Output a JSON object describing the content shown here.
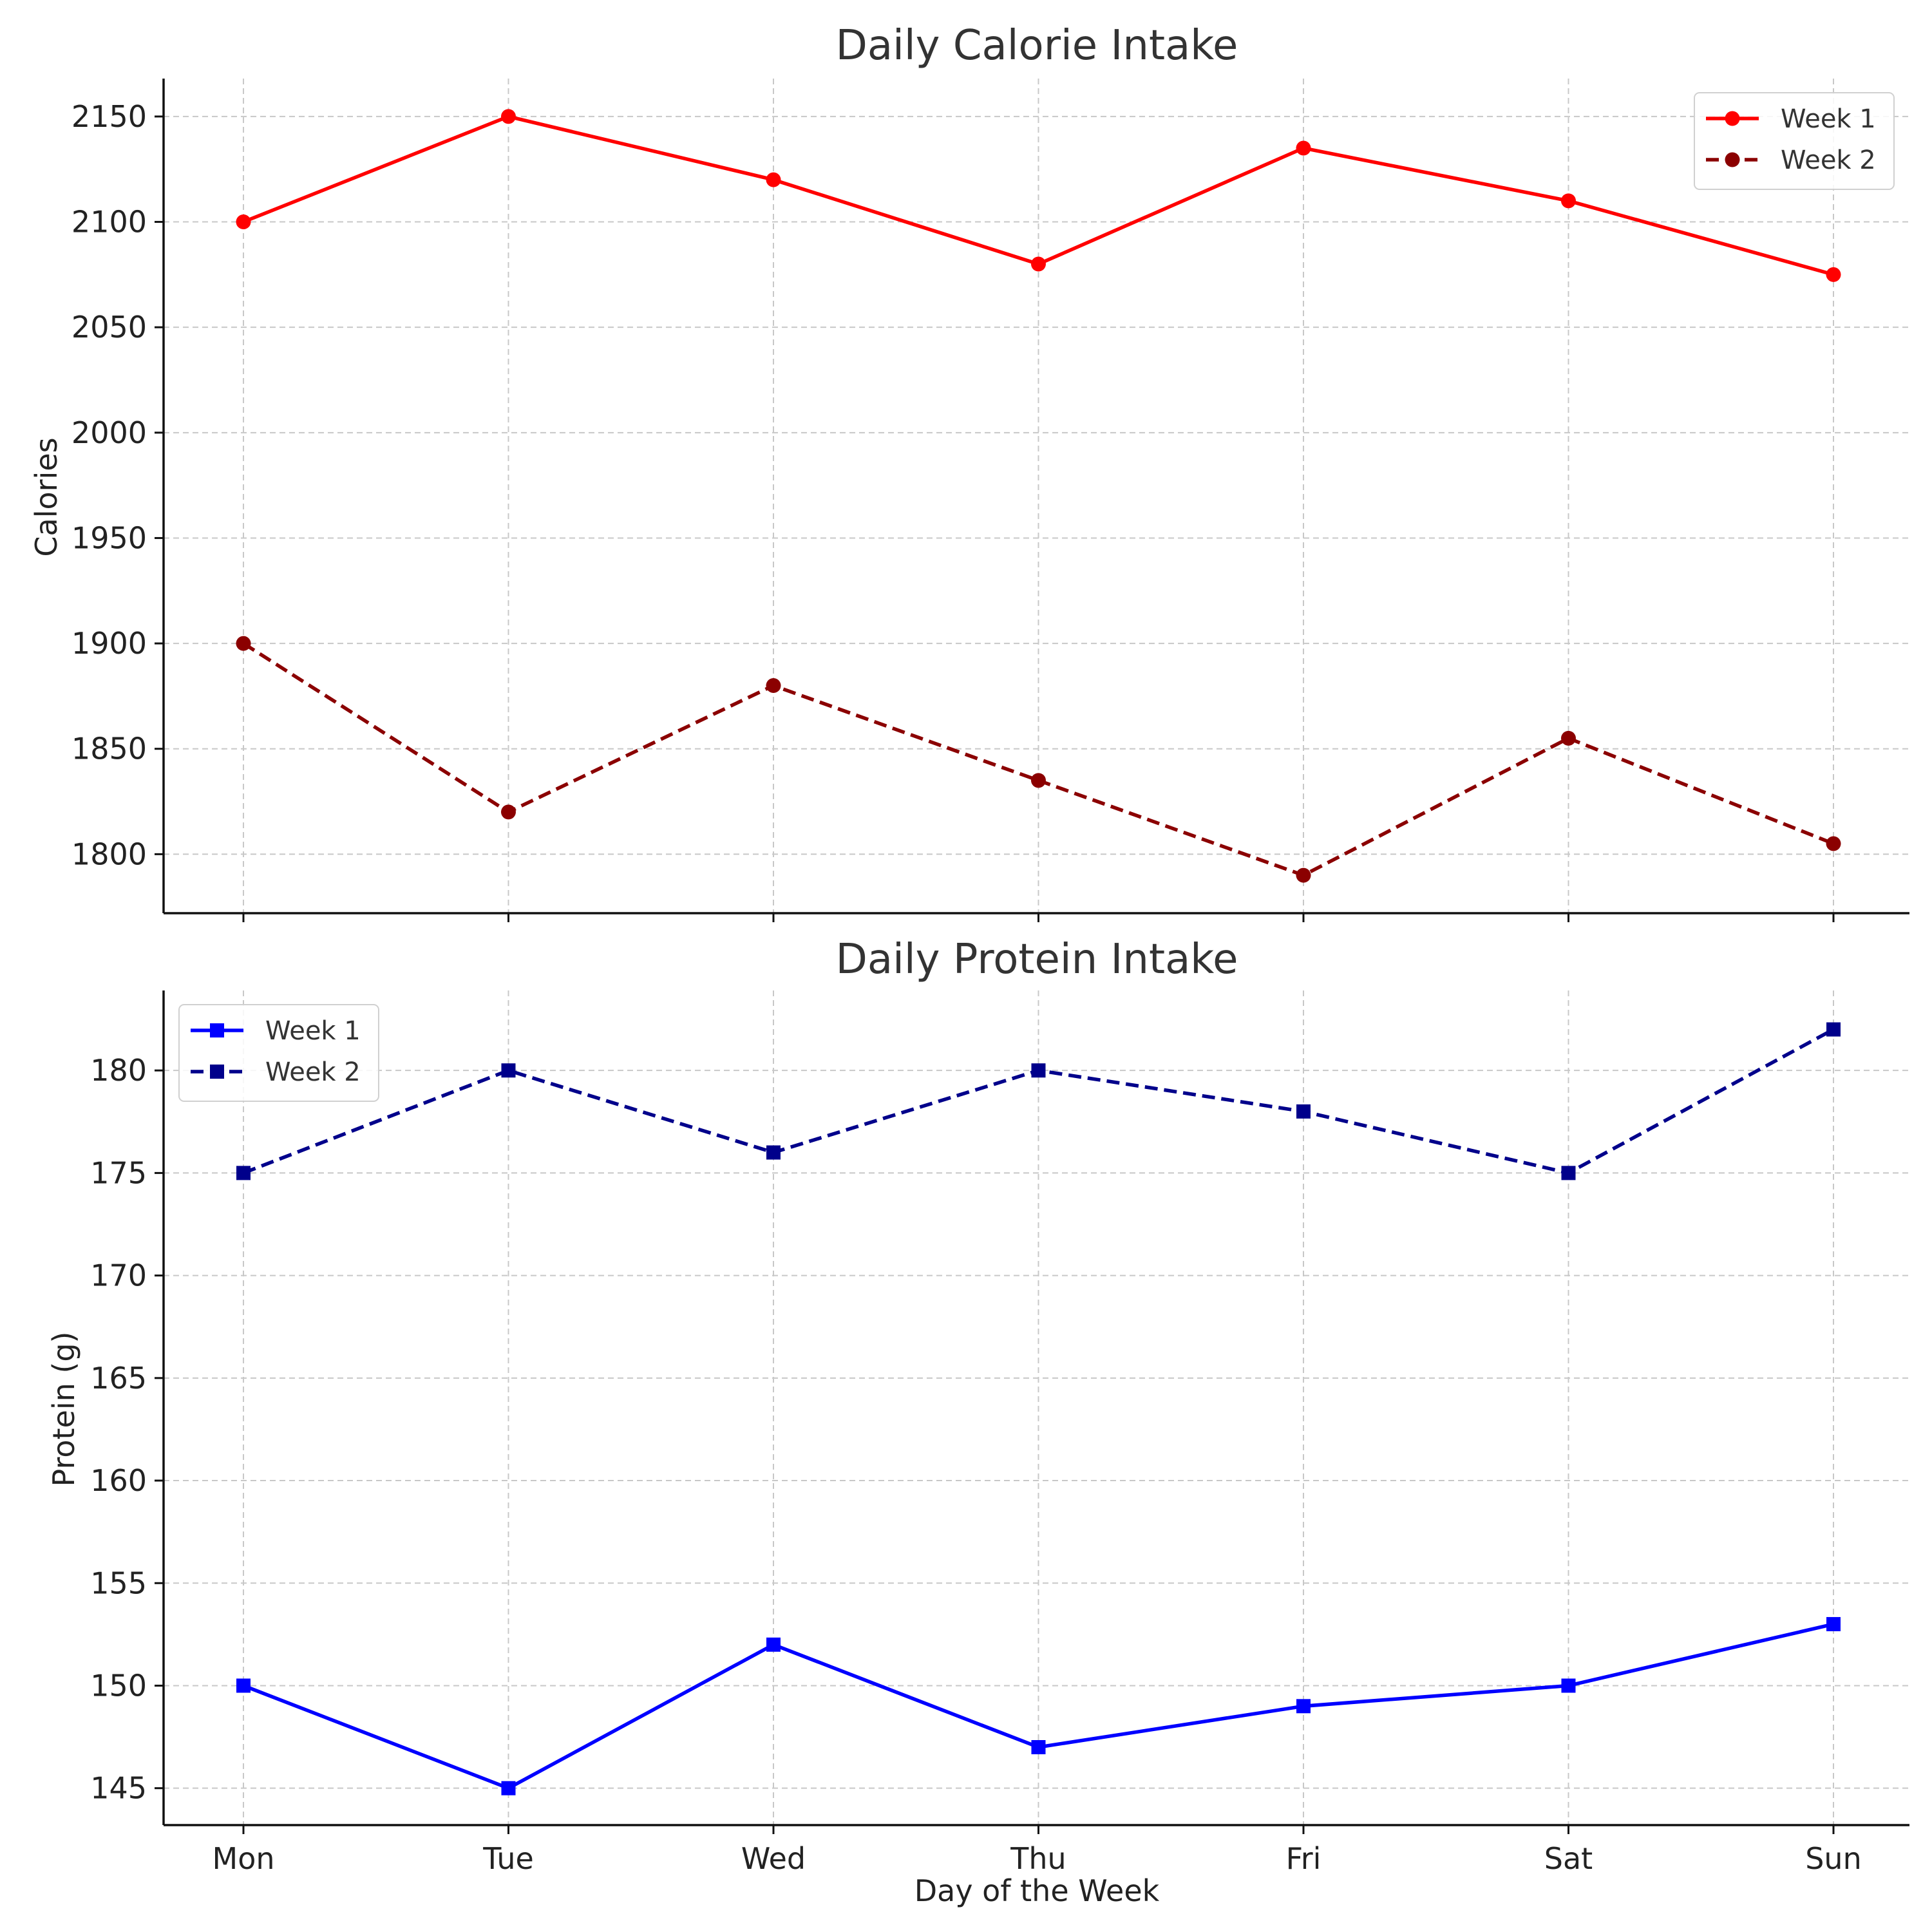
{
  "chart_data": [
    {
      "type": "line",
      "title": "Daily Calorie Intake",
      "xlabel": "",
      "ylabel": "Calories",
      "categories": [
        "Mon",
        "Tue",
        "Wed",
        "Thu",
        "Fri",
        "Sat",
        "Sun"
      ],
      "ylim": [
        1772,
        2168
      ],
      "yticks": [
        1800,
        1850,
        1900,
        1950,
        2000,
        2050,
        2100,
        2150
      ],
      "grid": true,
      "legend_position": "top-right",
      "series": [
        {
          "name": "Week 1",
          "values": [
            2100,
            2150,
            2120,
            2080,
            2135,
            2110,
            2075
          ],
          "color": "#ff0000",
          "line_style": "solid",
          "marker": "circle"
        },
        {
          "name": "Week 2",
          "values": [
            1900,
            1820,
            1880,
            1835,
            1790,
            1855,
            1805
          ],
          "color": "#8b0000",
          "line_style": "dashed",
          "marker": "circle"
        }
      ]
    },
    {
      "type": "line",
      "title": "Daily Protein Intake",
      "xlabel": "Day of the Week",
      "ylabel": "Protein (g)",
      "categories": [
        "Mon",
        "Tue",
        "Wed",
        "Thu",
        "Fri",
        "Sat",
        "Sun"
      ],
      "ylim": [
        143.2,
        183.9
      ],
      "yticks": [
        145,
        150,
        155,
        160,
        165,
        170,
        175,
        180
      ],
      "grid": true,
      "legend_position": "top-left",
      "series": [
        {
          "name": "Week 1",
          "values": [
            150,
            145,
            152,
            147,
            149,
            150,
            153
          ],
          "color": "#0000ff",
          "line_style": "solid",
          "marker": "square"
        },
        {
          "name": "Week 2",
          "values": [
            175,
            180,
            176,
            180,
            178,
            175,
            182
          ],
          "color": "#00008b",
          "line_style": "dashed",
          "marker": "square"
        }
      ]
    }
  ]
}
